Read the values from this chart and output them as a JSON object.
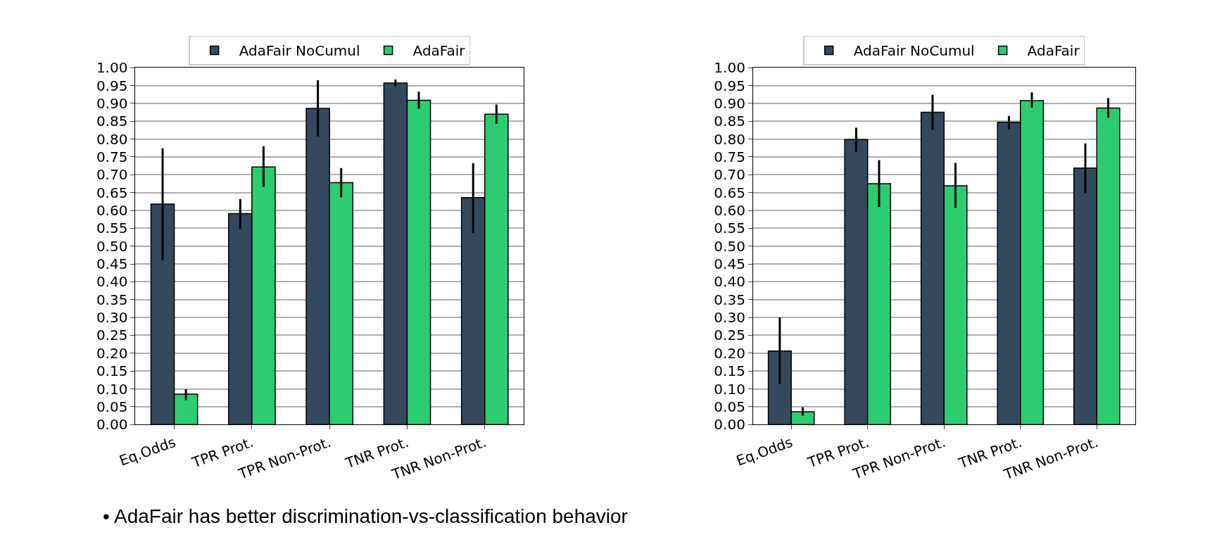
{
  "chart_data": [
    {
      "type": "bar",
      "categories": [
        "Eq.Odds",
        "TPR Prot.",
        "TPR Non-Prot.",
        "TNR Prot.",
        "TNR Non-Prot."
      ],
      "series": [
        {
          "name": "AdaFair NoCumul",
          "color": "#34495e",
          "values": [
            0.618,
            0.591,
            0.886,
            0.957,
            0.636
          ],
          "errors": [
            [
              0.46,
              0.774
            ],
            [
              0.548,
              0.632
            ],
            [
              0.807,
              0.965
            ],
            [
              0.948,
              0.967
            ],
            [
              0.537,
              0.732
            ]
          ]
        },
        {
          "name": "AdaFair",
          "color": "#2ecc71",
          "values": [
            0.085,
            0.722,
            0.678,
            0.909,
            0.87
          ],
          "errors": [
            [
              0.068,
              0.099
            ],
            [
              0.666,
              0.78
            ],
            [
              0.637,
              0.719
            ],
            [
              0.885,
              0.933
            ],
            [
              0.843,
              0.897
            ]
          ]
        }
      ],
      "ylim": [
        0,
        1
      ],
      "yticks": [
        {
          "value": 0,
          "label": "0.00"
        },
        {
          "value": 0.05,
          "label": "0.05"
        },
        {
          "value": 0.1,
          "label": "0.10"
        },
        {
          "value": 0.15,
          "label": "0.15"
        },
        {
          "value": 0.2,
          "label": "0.20"
        },
        {
          "value": 0.25,
          "label": "0.25"
        },
        {
          "value": 0.3,
          "label": "0.30"
        },
        {
          "value": 0.35,
          "label": "0.35"
        },
        {
          "value": 0.4,
          "label": "0.40"
        },
        {
          "value": 0.45,
          "label": "0.45"
        },
        {
          "value": 0.5,
          "label": "0.50"
        },
        {
          "value": 0.55,
          "label": "0.55"
        },
        {
          "value": 0.6,
          "label": "0.60"
        },
        {
          "value": 0.65,
          "label": "0.65"
        },
        {
          "value": 0.7,
          "label": "0.70"
        },
        {
          "value": 0.75,
          "label": "0.75"
        },
        {
          "value": 0.8,
          "label": "0.80"
        },
        {
          "value": 0.85,
          "label": "0.85"
        },
        {
          "value": 0.9,
          "label": "0.90"
        },
        {
          "value": 0.95,
          "label": "0.95"
        },
        {
          "value": 1,
          "label": "1.00"
        }
      ],
      "grid": "y",
      "legend": "top",
      "annotations": [
        "• AdaFair has better discrimination-vs-classification behavior"
      ]
    },
    {
      "type": "bar",
      "categories": [
        "Eq.Odds",
        "TPR Prot.",
        "TPR Non-Prot.",
        "TNR Prot.",
        "TNR Non-Prot."
      ],
      "series": [
        {
          "name": "AdaFair NoCumul",
          "color": "#34495e",
          "values": [
            0.206,
            0.799,
            0.875,
            0.847,
            0.719
          ],
          "errors": [
            [
              0.113,
              0.3
            ],
            [
              0.765,
              0.832
            ],
            [
              0.826,
              0.924
            ],
            [
              0.828,
              0.865
            ],
            [
              0.649,
              0.788
            ]
          ]
        },
        {
          "name": "AdaFair",
          "color": "#2ecc71",
          "values": [
            0.036,
            0.675,
            0.669,
            0.908,
            0.887
          ],
          "errors": [
            [
              0.025,
              0.048
            ],
            [
              0.61,
              0.741
            ],
            [
              0.607,
              0.733
            ],
            [
              0.888,
              0.931
            ],
            [
              0.86,
              0.915
            ]
          ]
        }
      ],
      "ylim": [
        0,
        1
      ],
      "yticks": [
        {
          "value": 0,
          "label": "0.00"
        },
        {
          "value": 0.05,
          "label": "0.05"
        },
        {
          "value": 0.1,
          "label": "0.10"
        },
        {
          "value": 0.15,
          "label": "0.15"
        },
        {
          "value": 0.2,
          "label": "0.20"
        },
        {
          "value": 0.25,
          "label": "0.25"
        },
        {
          "value": 0.3,
          "label": "0.30"
        },
        {
          "value": 0.35,
          "label": "0.35"
        },
        {
          "value": 0.4,
          "label": "0.40"
        },
        {
          "value": 0.45,
          "label": "0.45"
        },
        {
          "value": 0.5,
          "label": "0.50"
        },
        {
          "value": 0.55,
          "label": "0.55"
        },
        {
          "value": 0.6,
          "label": "0.60"
        },
        {
          "value": 0.65,
          "label": "0.65"
        },
        {
          "value": 0.7,
          "label": "0.70"
        },
        {
          "value": 0.75,
          "label": "0.75"
        },
        {
          "value": 0.8,
          "label": "0.80"
        },
        {
          "value": 0.85,
          "label": "0.85"
        },
        {
          "value": 0.9,
          "label": "0.90"
        },
        {
          "value": 0.95,
          "label": "0.95"
        },
        {
          "value": 1,
          "label": "1.00"
        }
      ],
      "grid": "y",
      "legend": "top"
    }
  ]
}
